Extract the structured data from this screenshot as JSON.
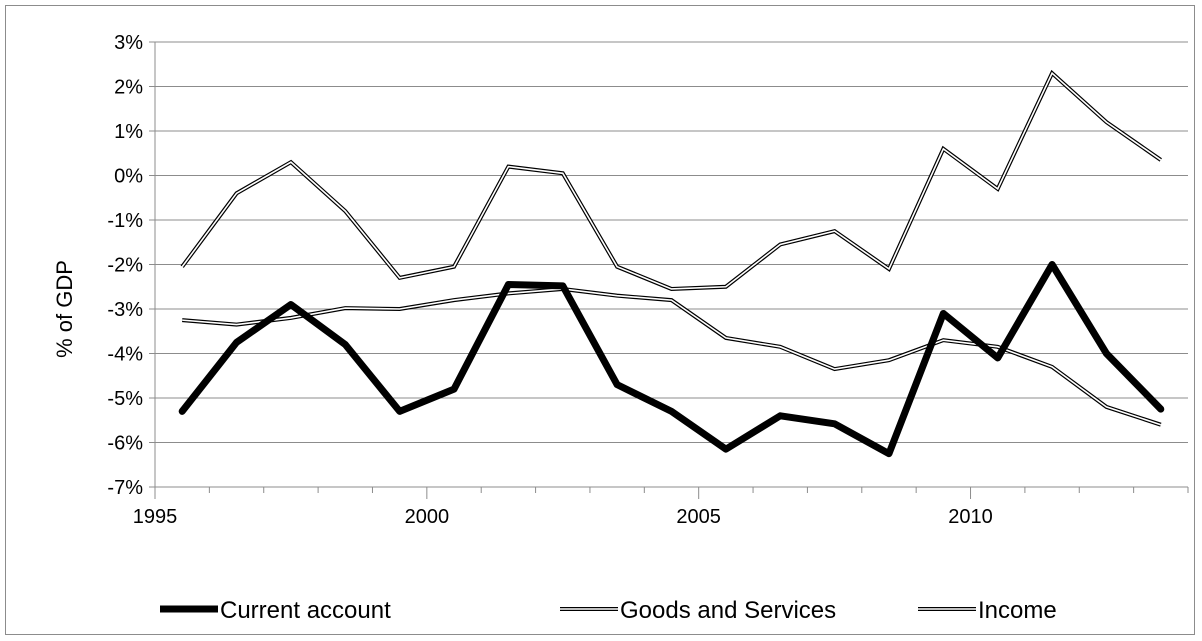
{
  "chart_data": {
    "type": "line",
    "title": "",
    "xlabel": "",
    "ylabel": "% of GDP",
    "ylim": [
      -7,
      3
    ],
    "xlim": [
      1994.5,
      2013.5
    ],
    "y_ticks": [
      3,
      2,
      1,
      0,
      -1,
      -2,
      -3,
      -4,
      -5,
      -6,
      -7
    ],
    "y_tick_labels": [
      "3%",
      "2%",
      "1%",
      "0%",
      "-1%",
      "-2%",
      "-3%",
      "-4%",
      "-5%",
      "-6%",
      "-7%"
    ],
    "x_tick_labels": [
      "1995",
      "2000",
      "2005",
      "2010"
    ],
    "grid": "horizontal",
    "legend_position": "bottom",
    "x": [
      1995,
      1996,
      1997,
      1998,
      1999,
      2000,
      2001,
      2002,
      2003,
      2004,
      2005,
      2006,
      2007,
      2008,
      2009,
      2010,
      2011,
      2012,
      2013
    ],
    "series": [
      {
        "name": "Current account",
        "style": "thick",
        "color": "#000000",
        "values": [
          -5.3,
          -3.75,
          -2.9,
          -3.8,
          -5.3,
          -4.8,
          -2.45,
          -2.48,
          -4.7,
          -5.3,
          -6.15,
          -5.4,
          -5.58,
          -6.25,
          -3.1,
          -4.1,
          -2.0,
          -4.0,
          -5.25
        ]
      },
      {
        "name": "Goods and Services",
        "style": "double",
        "color": "#000000",
        "values": [
          -2.05,
          -0.4,
          0.3,
          -0.8,
          -2.3,
          -2.05,
          0.2,
          0.05,
          -2.05,
          -2.55,
          -2.5,
          -1.55,
          -1.25,
          -2.1,
          0.6,
          -0.3,
          2.3,
          1.2,
          0.35
        ]
      },
      {
        "name": "Income",
        "style": "double",
        "color": "#000000",
        "values": [
          -3.25,
          -3.35,
          -3.2,
          -2.98,
          -3.0,
          -2.8,
          -2.65,
          -2.55,
          -2.7,
          -2.8,
          -3.65,
          -3.85,
          -4.35,
          -4.15,
          -3.7,
          -3.85,
          -4.3,
          -5.2,
          -5.6
        ]
      }
    ]
  }
}
